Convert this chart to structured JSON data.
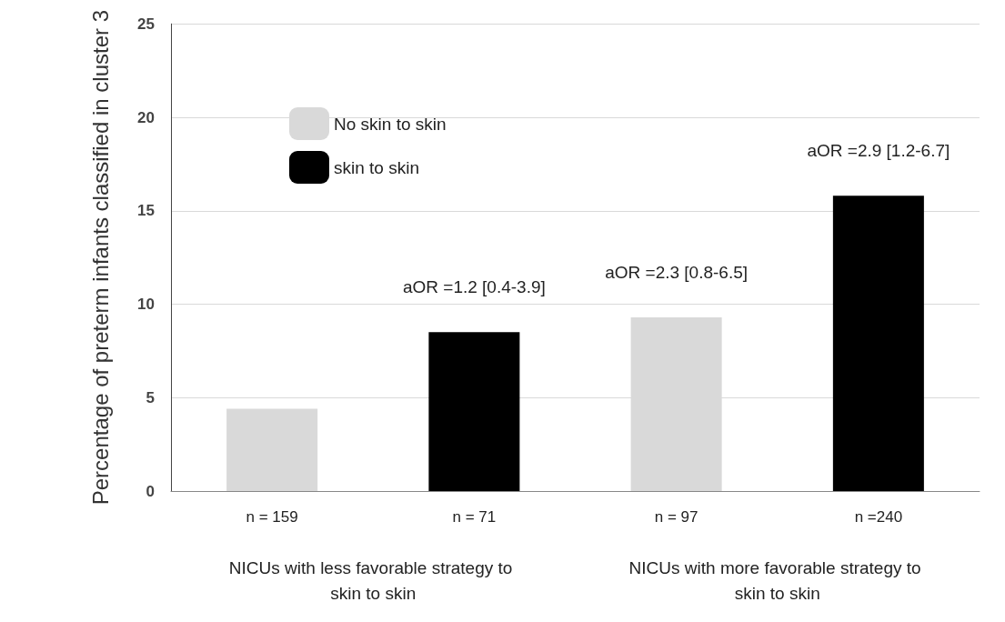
{
  "chart_data": {
    "type": "bar",
    "ylabel": "Percentage of preterm infants classified in cluster 3",
    "categories": [
      "n = 159",
      "n = 71",
      "n = 97",
      "n =240"
    ],
    "series": [
      {
        "name": "No skin to skin",
        "color": "#d9d9d9",
        "values": [
          4.4,
          null,
          9.3,
          null
        ]
      },
      {
        "name": "skin to skin",
        "color": "#000000",
        "values": [
          null,
          8.5,
          null,
          15.8
        ]
      }
    ],
    "stacked": true,
    "ylim": [
      0,
      25
    ],
    "yticks": [
      0,
      5,
      10,
      15,
      20,
      25
    ],
    "grid": "y",
    "legend": "top left",
    "annotations": [
      {
        "text": "aOR =1.2 [0.4-3.9]",
        "x": "n = 71",
        "y": 8.5
      },
      {
        "text": "aOR =2.3 [0.8-6.5]",
        "x": "n = 97",
        "y": 9.3
      },
      {
        "text": "aOR =2.9 [1.2-6.7]",
        "x": "n =240",
        "y": 15.8
      },
      "NICUs with less favorable strategy to skin to skin",
      "NICUs with more favorable strategy to skin to skin"
    ]
  }
}
